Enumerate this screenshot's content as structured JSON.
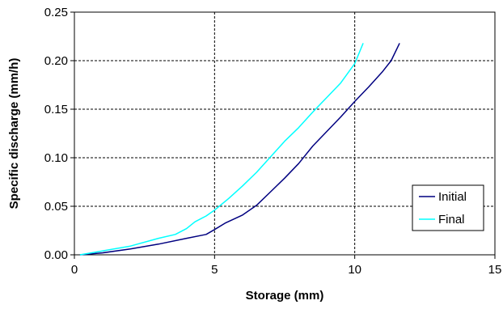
{
  "chart_data": {
    "type": "line",
    "xlabel": "Storage (mm)",
    "ylabel": "Specific discharge (mm/h)",
    "xlim": [
      0,
      15
    ],
    "ylim": [
      0,
      0.25
    ],
    "x_ticks": [
      0,
      5,
      10,
      15
    ],
    "y_ticks": [
      0.0,
      0.05,
      0.1,
      0.15,
      0.2,
      0.25
    ],
    "x_tick_labels": [
      "0",
      "5",
      "10",
      "15"
    ],
    "y_tick_labels": [
      "0.00",
      "0.05",
      "0.10",
      "0.15",
      "0.20",
      "0.25"
    ],
    "grid": "dashed, both axes",
    "legend_position": "bottom-right",
    "series": [
      {
        "name": "Initial",
        "color": "#000080",
        "points": [
          [
            0.2,
            0.0
          ],
          [
            1.0,
            0.002
          ],
          [
            2.0,
            0.006
          ],
          [
            3.0,
            0.011
          ],
          [
            4.0,
            0.017
          ],
          [
            4.7,
            0.021
          ],
          [
            5.0,
            0.026
          ],
          [
            5.4,
            0.033
          ],
          [
            6.0,
            0.041
          ],
          [
            6.5,
            0.051
          ],
          [
            7.0,
            0.065
          ],
          [
            7.5,
            0.079
          ],
          [
            8.0,
            0.094
          ],
          [
            8.5,
            0.112
          ],
          [
            9.0,
            0.127
          ],
          [
            9.5,
            0.142
          ],
          [
            10.0,
            0.158
          ],
          [
            10.5,
            0.173
          ],
          [
            11.0,
            0.189
          ],
          [
            11.3,
            0.2
          ],
          [
            11.6,
            0.218
          ]
        ]
      },
      {
        "name": "Final",
        "color": "#00FFFF",
        "points": [
          [
            0.2,
            0.0
          ],
          [
            1.0,
            0.004
          ],
          [
            2.0,
            0.009
          ],
          [
            3.0,
            0.017
          ],
          [
            3.6,
            0.021
          ],
          [
            4.0,
            0.027
          ],
          [
            4.3,
            0.034
          ],
          [
            4.7,
            0.04
          ],
          [
            5.0,
            0.046
          ],
          [
            5.5,
            0.058
          ],
          [
            6.0,
            0.071
          ],
          [
            6.5,
            0.085
          ],
          [
            7.0,
            0.101
          ],
          [
            7.5,
            0.117
          ],
          [
            8.0,
            0.131
          ],
          [
            8.5,
            0.147
          ],
          [
            9.0,
            0.162
          ],
          [
            9.5,
            0.177
          ],
          [
            10.0,
            0.197
          ],
          [
            10.3,
            0.218
          ]
        ]
      }
    ]
  }
}
